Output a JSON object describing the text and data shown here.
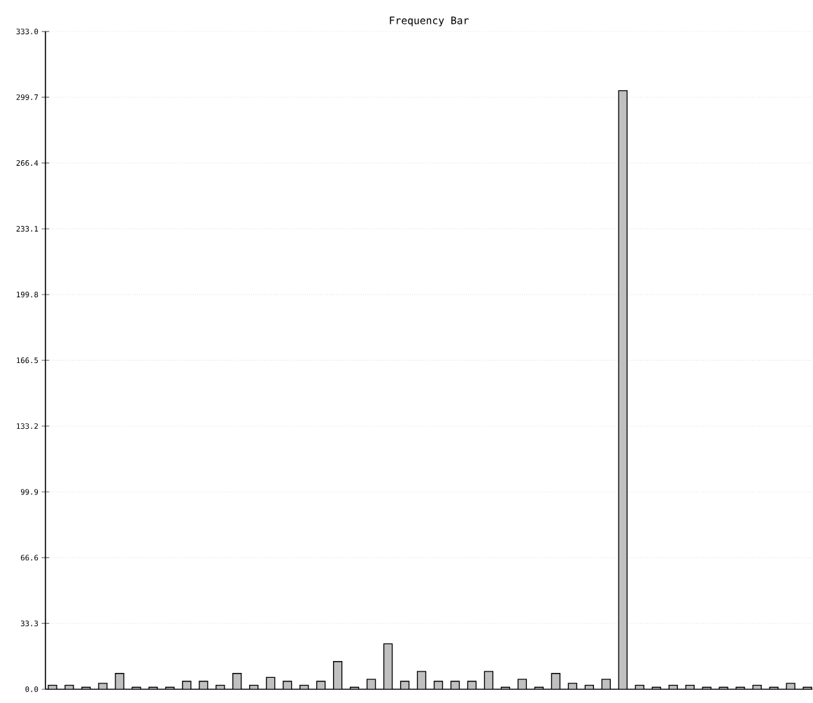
{
  "chart_data": {
    "type": "bar",
    "title": "Frequency Bar",
    "categories": [
      null,
      null,
      null,
      null,
      null,
      null,
      null,
      null,
      null,
      null,
      null,
      null,
      null,
      null,
      null,
      null,
      null,
      null,
      null,
      null,
      null,
      null,
      null,
      null,
      null,
      null,
      null,
      null,
      null,
      null,
      null,
      null,
      null,
      null,
      null,
      null,
      null,
      null,
      null,
      null,
      null,
      null,
      null,
      null,
      null,
      null
    ],
    "values": [
      2,
      2,
      1,
      3,
      8,
      1,
      1,
      1,
      4,
      4,
      2,
      8,
      2,
      6,
      4,
      2,
      4,
      14,
      1,
      5,
      23,
      4,
      9,
      4,
      4,
      4,
      9,
      1,
      5,
      1,
      8,
      3,
      2,
      5,
      303,
      2,
      1,
      2,
      2,
      1,
      1,
      1,
      2,
      1,
      3,
      1
    ],
    "color": "#c0c0c0",
    "ylim": [
      0,
      333
    ],
    "yticks": [
      {
        "value": 0,
        "label": "0.0"
      },
      {
        "value": 33.3,
        "label": "33.3"
      },
      {
        "value": 66.6,
        "label": "66.6"
      },
      {
        "value": 99.9,
        "label": "99.9"
      },
      {
        "value": 133.2,
        "label": "133.2"
      },
      {
        "value": 166.5,
        "label": "166.5"
      },
      {
        "value": 199.8,
        "label": "199.8"
      },
      {
        "value": 233.1,
        "label": "233.1"
      },
      {
        "value": 266.4,
        "label": "266.4"
      },
      {
        "value": 299.7,
        "label": "299.7"
      },
      {
        "value": 333,
        "label": "333.0"
      }
    ],
    "grid": "y"
  }
}
